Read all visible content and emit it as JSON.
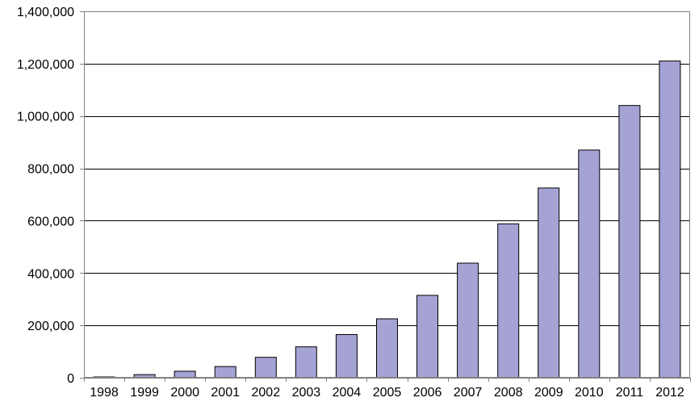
{
  "chart_data": {
    "type": "bar",
    "title": "",
    "xlabel": "",
    "ylabel": "",
    "categories": [
      "1998",
      "1999",
      "2000",
      "2001",
      "2002",
      "2003",
      "2004",
      "2005",
      "2006",
      "2007",
      "2008",
      "2009",
      "2010",
      "2011",
      "2012"
    ],
    "values": [
      3000,
      12000,
      25000,
      43000,
      78000,
      118000,
      165000,
      225000,
      315000,
      438000,
      588000,
      725000,
      870000,
      1040000,
      1210000
    ],
    "ylim": [
      0,
      1400000
    ],
    "yticks": [
      0,
      200000,
      400000,
      600000,
      800000,
      1000000,
      1200000,
      1400000
    ],
    "ytick_labels": [
      "0",
      "200,000",
      "400,000",
      "600,000",
      "800,000",
      "1,000,000",
      "1,200,000",
      "1,400,000"
    ],
    "grid": true,
    "legend": "none",
    "bar_color": "#a5a3d4",
    "bar_edge_color": "#000000"
  }
}
